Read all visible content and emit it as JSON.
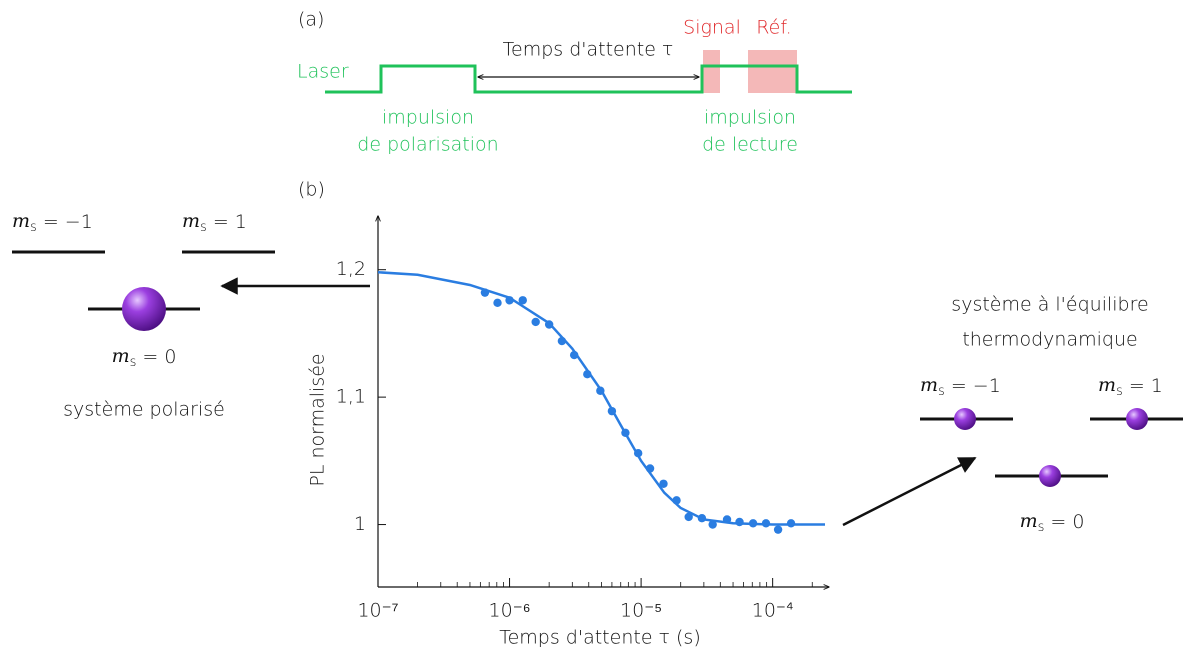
{
  "panel_a": {
    "label": "(a)",
    "laser": "Laser",
    "wait": "Temps d'attente τ",
    "signal": "Signal",
    "ref": "Réf.",
    "pulse1": [
      "impulsion",
      "de polarisation"
    ],
    "pulse2": [
      "impulsion",
      "de lecture"
    ]
  },
  "panel_b": {
    "label": "(b)",
    "polarized": {
      "levels": [
        {
          "m": "m",
          "sub": "s",
          "eq": "= −1"
        },
        {
          "m": "m",
          "sub": "s",
          "eq": "= 1"
        },
        {
          "m": "m",
          "sub": "s",
          "eq": "= 0"
        }
      ],
      "caption": "système polarisé"
    },
    "equilibrium": {
      "levels": [
        {
          "m": "m",
          "sub": "s",
          "eq": "= −1"
        },
        {
          "m": "m",
          "sub": "s",
          "eq": "= 1"
        },
        {
          "m": "m",
          "sub": "s",
          "eq": "= 0"
        }
      ],
      "caption": [
        "système à l'équilibre",
        "thermodynamique"
      ]
    }
  },
  "chart_data": {
    "type": "scatter",
    "x_label": "Temps d'attente τ (s)",
    "y_label": "PL normalisée",
    "x_scale": "log",
    "xlim": [
      1e-07,
      0.00025
    ],
    "ylim": [
      0.951,
      1.239
    ],
    "xticks": [
      {
        "value": 1e-07,
        "label": "10⁻⁷"
      },
      {
        "value": 1e-06,
        "label": "10⁻⁶"
      },
      {
        "value": 1e-05,
        "label": "10⁻⁵"
      },
      {
        "value": 0.0001,
        "label": "10⁻⁴"
      }
    ],
    "xminor_ticks": [
      2e-07,
      3e-07,
      4e-07,
      5e-07,
      6e-07,
      7e-07,
      8e-07,
      9e-07,
      2e-06,
      3e-06,
      4e-06,
      5e-06,
      6e-06,
      7e-06,
      8e-06,
      9e-06,
      2e-05,
      3e-05,
      4e-05,
      5e-05,
      6e-05,
      7e-05,
      8e-05,
      9e-05,
      0.0002
    ],
    "yticks": [
      1,
      {
        "value": 1.1,
        "label": "1,1"
      },
      {
        "value": 1.2,
        "label": "1,2"
      }
    ],
    "series": [
      {
        "kind": "points",
        "color": "#2a7de1",
        "x": [
          6.5e-07,
          8.1e-07,
          1e-06,
          1.26e-06,
          1.58e-06,
          2e-06,
          2.5e-06,
          3.1e-06,
          3.9e-06,
          4.9e-06,
          6e-06,
          7.6e-06,
          9.5e-06,
          1.17e-05,
          1.48e-05,
          1.86e-05,
          2.3e-05,
          2.9e-05,
          3.5e-05,
          4.5e-05,
          5.6e-05,
          7.1e-05,
          8.9e-05,
          0.00011,
          0.000138
        ],
        "values": [
          1.182,
          1.174,
          1.176,
          1.176,
          1.159,
          1.157,
          1.144,
          1.133,
          1.118,
          1.105,
          1.089,
          1.072,
          1.056,
          1.044,
          1.032,
          1.019,
          1.006,
          1.005,
          1.0,
          1.004,
          1.002,
          1.001,
          1.001,
          0.996,
          1.001
        ]
      },
      {
        "kind": "line",
        "color": "#2a7de1",
        "x": [
          1e-07,
          2e-07,
          5e-07,
          1e-06,
          2e-06,
          3e-06,
          5e-06,
          7e-06,
          1e-05,
          1.5e-05,
          2e-05,
          3e-05,
          5e-05,
          0.0001,
          0.00025
        ],
        "values": [
          1.198,
          1.196,
          1.188,
          1.178,
          1.158,
          1.138,
          1.105,
          1.078,
          1.05,
          1.025,
          1.013,
          1.004,
          1.001,
          1.0,
          1.0
        ]
      }
    ]
  }
}
